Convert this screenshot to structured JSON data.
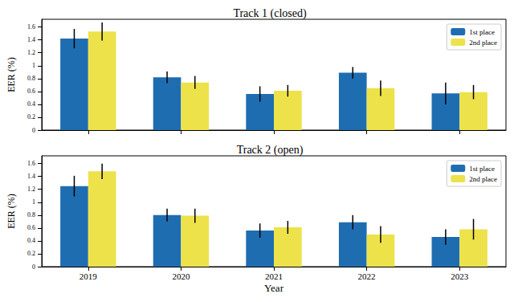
{
  "chart_data": [
    {
      "type": "bar",
      "title": "Track 1 (closed)",
      "ylabel": "EER (%)",
      "categories": [
        "2019",
        "2020",
        "2021",
        "2022",
        "2023"
      ],
      "series": [
        {
          "name": "1st place",
          "color": "#1f6db1",
          "values": [
            1.42,
            0.82,
            0.56,
            0.89,
            0.57
          ],
          "errors": [
            0.15,
            0.09,
            0.12,
            0.09,
            0.17
          ]
        },
        {
          "name": "2nd place",
          "color": "#ede24a",
          "values": [
            1.53,
            0.74,
            0.61,
            0.65,
            0.59
          ],
          "errors": [
            0.14,
            0.1,
            0.09,
            0.12,
            0.11
          ]
        }
      ],
      "ylim": [
        0,
        1.72
      ],
      "yticks": [
        0,
        0.2,
        0.4,
        0.6,
        0.8,
        1,
        1.2,
        1.4,
        1.6
      ],
      "grid": false,
      "legend": "upper right",
      "tick_labels": "y"
    },
    {
      "type": "bar",
      "title": "Track 2 (open)",
      "xlabel": "Year",
      "ylabel": "EER (%)",
      "categories": [
        "2019",
        "2020",
        "2021",
        "2022",
        "2023"
      ],
      "series": [
        {
          "name": "1st place",
          "color": "#1f6db1",
          "values": [
            1.25,
            0.8,
            0.56,
            0.69,
            0.46
          ],
          "errors": [
            0.16,
            0.1,
            0.11,
            0.11,
            0.12
          ]
        },
        {
          "name": "2nd place",
          "color": "#ede24a",
          "values": [
            1.48,
            0.79,
            0.61,
            0.5,
            0.58
          ],
          "errors": [
            0.12,
            0.11,
            0.1,
            0.13,
            0.16
          ]
        }
      ],
      "ylim": [
        0,
        1.72
      ],
      "yticks": [
        0,
        0.2,
        0.4,
        0.6,
        0.8,
        1,
        1.2,
        1.4,
        1.6
      ],
      "grid": false,
      "legend": "upper right",
      "tick_labels": true
    }
  ]
}
